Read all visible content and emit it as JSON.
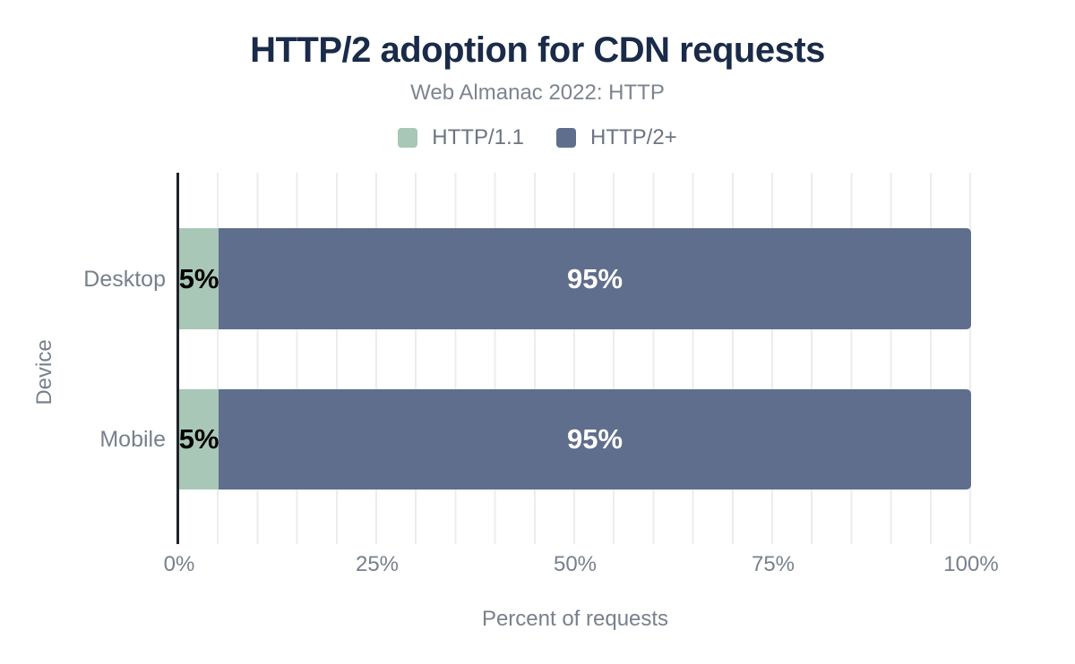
{
  "chart": {
    "title": "HTTP/2 adoption for CDN requests",
    "subtitle": "Web Almanac 2022: HTTP",
    "x_axis": {
      "label": "Percent of requests",
      "ticks": [
        "0%",
        "25%",
        "50%",
        "75%",
        "100%"
      ]
    },
    "y_axis": {
      "label": "Device",
      "categories": [
        "Desktop",
        "Mobile"
      ]
    },
    "legend": {
      "items": [
        {
          "label": "HTTP/1.1",
          "color": "#a8c7b7"
        },
        {
          "label": "HTTP/2+",
          "color": "#5f6e8c"
        }
      ]
    },
    "rows": [
      {
        "category": "Desktop",
        "segments": [
          {
            "label": "5%",
            "width": "5%",
            "color": "#a8c7b7",
            "text_color": "#000000"
          },
          {
            "label": "95%",
            "width": "95%",
            "color": "#5f6e8c",
            "text_color": "#ffffff"
          }
        ]
      },
      {
        "category": "Mobile",
        "segments": [
          {
            "label": "5%",
            "width": "5%",
            "color": "#a8c7b7",
            "text_color": "#000000"
          },
          {
            "label": "95%",
            "width": "95%",
            "color": "#5f6e8c",
            "text_color": "#ffffff"
          }
        ]
      }
    ],
    "colors": {
      "title": "#1a2b49",
      "text_gray": "#78808d",
      "axis_line": "#202327",
      "gridline": "#ececee",
      "background": "#ffffff"
    }
  },
  "chart_data": {
    "type": "bar",
    "orientation": "horizontal",
    "stacked": true,
    "title": "HTTP/2 adoption for CDN requests",
    "subtitle": "Web Almanac 2022: HTTP",
    "xlabel": "Percent of requests",
    "ylabel": "Device",
    "categories": [
      "Desktop",
      "Mobile"
    ],
    "series": [
      {
        "name": "HTTP/1.1",
        "values": [
          5,
          5
        ]
      },
      {
        "name": "HTTP/2+",
        "values": [
          95,
          95
        ]
      }
    ],
    "data_labels": [
      [
        "5%",
        "95%"
      ],
      [
        "5%",
        "95%"
      ]
    ],
    "xlim": [
      0,
      100
    ],
    "x_tick_interval": 25,
    "minor_gridline_interval": 5,
    "grid": "vertical-minor",
    "legend_position": "top",
    "value_label_colors": [
      "#000000",
      "#ffffff"
    ]
  }
}
